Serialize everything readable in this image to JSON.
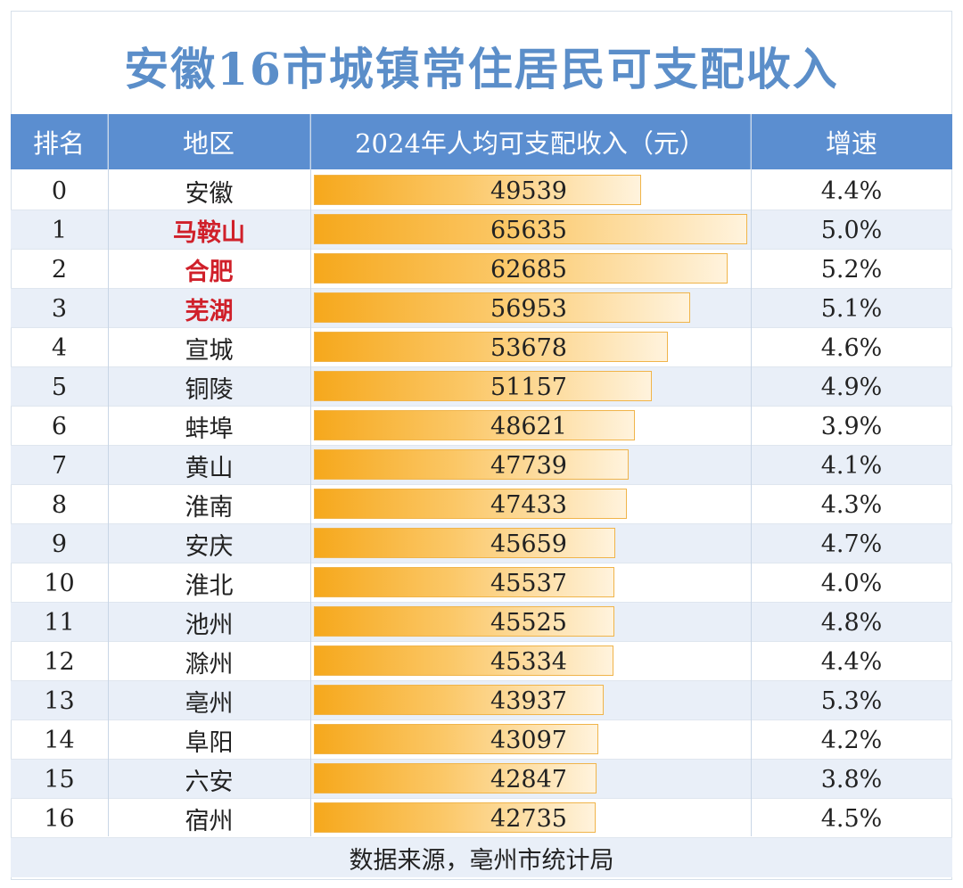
{
  "title": "安徽16市城镇常住居民可支配收入",
  "headers": {
    "rank": "排名",
    "region": "地区",
    "income": "2024年人均可支配收入（元）",
    "growth": "增速"
  },
  "colors": {
    "title": "#5b8ec9",
    "header_bg": "#5b8ed0",
    "highlight_text": "#d0202a",
    "bar_start": "#f6a81c",
    "bar_end": "#fff3dd"
  },
  "chart_data": {
    "type": "bar",
    "title": "安徽16市城镇常住居民可支配收入",
    "value_header": "2024年人均可支配收入（元）",
    "rows": [
      {
        "rank": "0",
        "region": "安徽",
        "value": 49539,
        "growth": "4.4%",
        "highlight": false
      },
      {
        "rank": "1",
        "region": "马鞍山",
        "value": 65635,
        "growth": "5.0%",
        "highlight": true
      },
      {
        "rank": "2",
        "region": "合肥",
        "value": 62685,
        "growth": "5.2%",
        "highlight": true
      },
      {
        "rank": "3",
        "region": "芜湖",
        "value": 56953,
        "growth": "5.1%",
        "highlight": true
      },
      {
        "rank": "4",
        "region": "宣城",
        "value": 53678,
        "growth": "4.6%",
        "highlight": false
      },
      {
        "rank": "5",
        "region": "铜陵",
        "value": 51157,
        "growth": "4.9%",
        "highlight": false
      },
      {
        "rank": "6",
        "region": "蚌埠",
        "value": 48621,
        "growth": "3.9%",
        "highlight": false
      },
      {
        "rank": "7",
        "region": "黄山",
        "value": 47739,
        "growth": "4.1%",
        "highlight": false
      },
      {
        "rank": "8",
        "region": "淮南",
        "value": 47433,
        "growth": "4.3%",
        "highlight": false
      },
      {
        "rank": "9",
        "region": "安庆",
        "value": 45659,
        "growth": "4.7%",
        "highlight": false
      },
      {
        "rank": "10",
        "region": "淮北",
        "value": 45537,
        "growth": "4.0%",
        "highlight": false
      },
      {
        "rank": "11",
        "region": "池州",
        "value": 45525,
        "growth": "4.8%",
        "highlight": false
      },
      {
        "rank": "12",
        "region": "滁州",
        "value": 45334,
        "growth": "4.4%",
        "highlight": false
      },
      {
        "rank": "13",
        "region": "亳州",
        "value": 43937,
        "growth": "5.3%",
        "highlight": false
      },
      {
        "rank": "14",
        "region": "阜阳",
        "value": 43097,
        "growth": "4.2%",
        "highlight": false
      },
      {
        "rank": "15",
        "region": "六安",
        "value": 42847,
        "growth": "3.8%",
        "highlight": false
      },
      {
        "rank": "16",
        "region": "宿州",
        "value": 42735,
        "growth": "4.5%",
        "highlight": false
      }
    ]
  },
  "source": "数据来源，亳州市统计局"
}
